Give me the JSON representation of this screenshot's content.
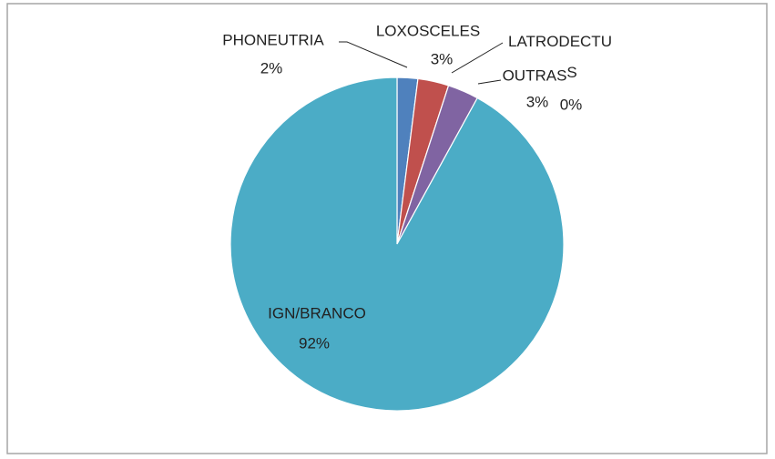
{
  "chart_data": {
    "type": "pie",
    "categories": [
      "PHONEUTRIA",
      "LOXOSCELES",
      "LATRODECTUS",
      "OUTRAS",
      "IGN/BRANCO"
    ],
    "values": [
      2,
      3,
      0,
      3,
      92
    ],
    "value_labels": [
      "2%",
      "3%",
      "0%",
      "3%",
      "92%"
    ],
    "colors": [
      "#4f81bd",
      "#c0504d",
      "#9bbb59",
      "#8064a2",
      "#4bacc6"
    ]
  }
}
